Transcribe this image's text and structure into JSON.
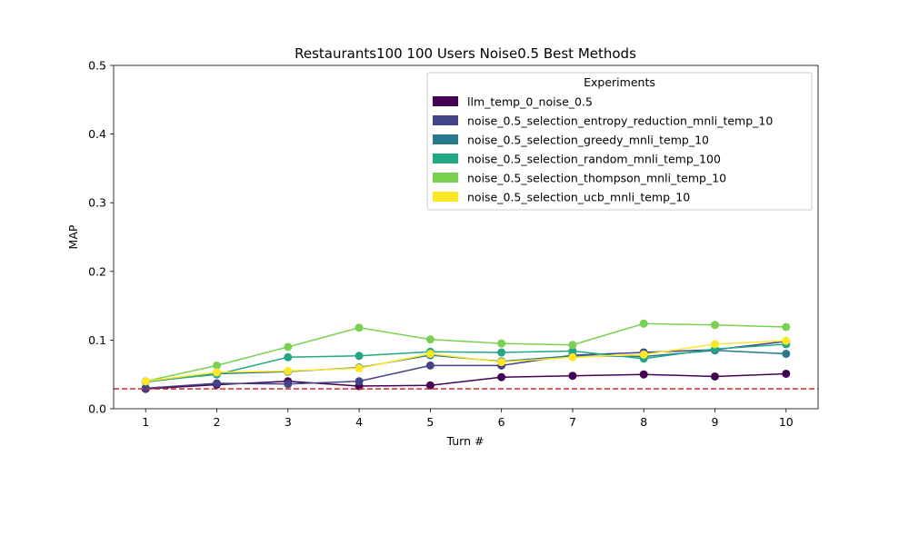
{
  "chart_data": {
    "type": "line",
    "title": "Restaurants100 100 Users Noise0.5 Best Methods",
    "xlabel": "Turn #",
    "ylabel": "MAP",
    "x": [
      1,
      2,
      3,
      4,
      5,
      6,
      7,
      8,
      9,
      10
    ],
    "xlim": [
      0.55,
      10.45
    ],
    "ylim": [
      0,
      0.5
    ],
    "yticks": [
      "0.0",
      "0.1",
      "0.2",
      "0.3",
      "0.4",
      "0.5"
    ],
    "grid": false,
    "legend": {
      "title": "Experiments",
      "placement": "top-right"
    },
    "baseline": {
      "value": 0.029,
      "color": "#d62728",
      "style": "dashed"
    },
    "series": [
      {
        "name": "llm_temp_0_noise_0.5",
        "color": "#440154",
        "values": [
          0.029,
          0.035,
          0.04,
          0.033,
          0.034,
          0.046,
          0.048,
          0.05,
          0.047,
          0.051
        ]
      },
      {
        "name": "noise_0.5_selection_entropy_reduction_mnli_temp_10",
        "color": "#414487",
        "values": [
          0.03,
          0.037,
          0.036,
          0.04,
          0.063,
          0.063,
          0.078,
          0.082,
          0.086,
          0.098
        ]
      },
      {
        "name": "noise_0.5_selection_greedy_mnli_temp_10",
        "color": "#2a788e",
        "values": [
          0.039,
          0.051,
          0.054,
          0.06,
          0.078,
          0.069,
          0.077,
          0.076,
          0.085,
          0.08
        ]
      },
      {
        "name": "noise_0.5_selection_random_mnli_temp_100",
        "color": "#22a884",
        "values": [
          0.04,
          0.05,
          0.075,
          0.077,
          0.083,
          0.082,
          0.084,
          0.073,
          0.087,
          0.094
        ]
      },
      {
        "name": "noise_0.5_selection_thompson_mnli_temp_10",
        "color": "#7ad151",
        "values": [
          0.04,
          0.063,
          0.09,
          0.118,
          0.101,
          0.095,
          0.093,
          0.124,
          0.122,
          0.119
        ]
      },
      {
        "name": "noise_0.5_selection_ucb_mnli_temp_10",
        "color": "#fde725",
        "values": [
          0.04,
          0.053,
          0.055,
          0.059,
          0.08,
          0.068,
          0.075,
          0.079,
          0.094,
          0.099
        ]
      }
    ]
  }
}
